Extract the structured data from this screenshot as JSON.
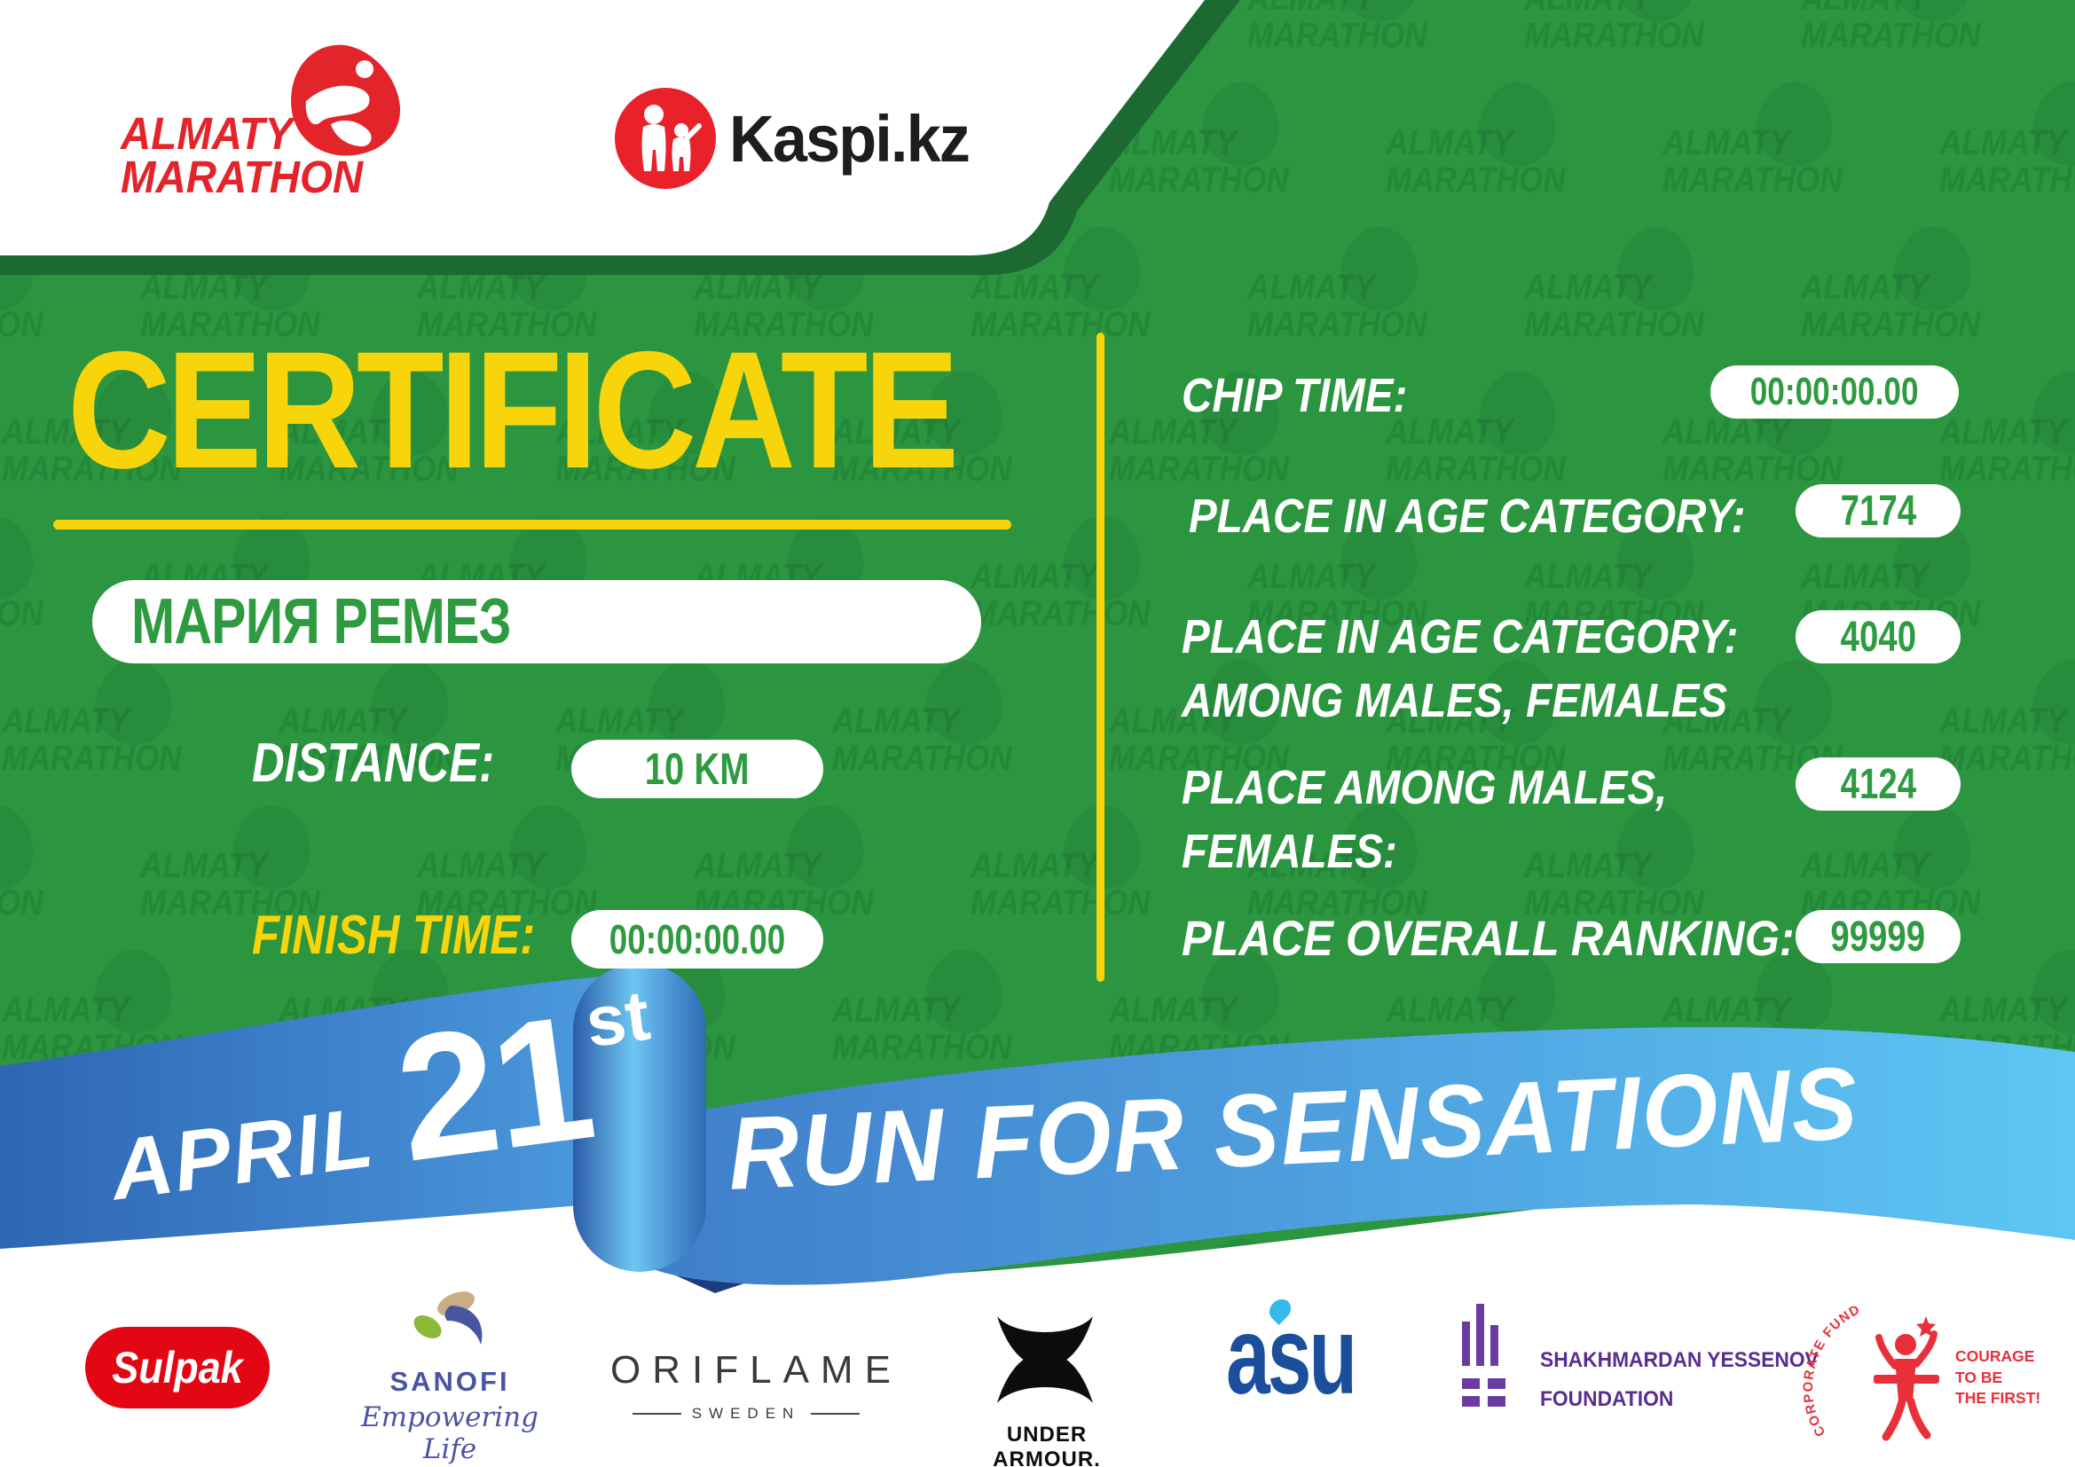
{
  "watermark": {
    "line1": "ALMATY",
    "line2": "MARATHON"
  },
  "header": {
    "almaty_line1": "ALMATY",
    "almaty_line2": "MARATHON",
    "kaspi_wordmark": "Kaspi.kz"
  },
  "title": "CERTIFICATE",
  "participant_name": "МАРИЯ РЕМЕЗ",
  "left_fields": {
    "distance_label": "DISTANCE:",
    "distance_value": "10 KM",
    "finish_label": "FINISH TIME:",
    "finish_value": "00:00:00.00"
  },
  "results": {
    "chip": {
      "label": "CHIP TIME:",
      "value": "00:00:00.00"
    },
    "age": {
      "label": "PLACE IN AGE CATEGORY:",
      "value": "7174"
    },
    "age_gender": {
      "label1": "PLACE IN AGE CATEGORY:",
      "label2": "AMONG MALES, FEMALES",
      "value": "4040"
    },
    "gender": {
      "label1": "PLACE AMONG MALES,",
      "label2": "FEMALES:",
      "value": "4124"
    },
    "overall": {
      "label": "PLACE OVERALL RANKING:",
      "value": "99999"
    }
  },
  "ribbon": {
    "month": "APRIL",
    "day": "21",
    "ordinal": "st",
    "slogan": "RUN FOR SENSATIONS"
  },
  "sponsors": {
    "sulpak": "Sulpak",
    "sanofi_name": "SANOFI",
    "sanofi_tagline": "Empowering Life",
    "oriflame_name": "ORIFLAME",
    "oriflame_country": "SWEDEN",
    "underarmour": "UNDER ARMOUR.",
    "asu": "asu",
    "yessenov_line1": "SHAKHMARDAN YESSENOV",
    "yessenov_line2": "FOUNDATION",
    "courage_arc": "CORPORATE FUND",
    "courage_line1": "COURAGE",
    "courage_line2": "TO BE",
    "courage_line3": "THE FIRST!"
  },
  "colors": {
    "background_green": "#2b953f",
    "dark_green_edge": "#1c6a32",
    "yellow": "#f8d50a",
    "brand_red": "#e3242b",
    "kaspi_red": "#e8212a",
    "ribbon_blue_left": "#3570bd",
    "ribbon_blue_right": "#55b9ee",
    "ribbon_fold_navy": "#1e3c7d",
    "value_green": "#2e9b40",
    "sanofi_blue": "#4a55a2",
    "asu_blue": "#1b4e9b",
    "yessenov_purple": "#5b2d8f",
    "courage_red": "#e8303a",
    "sulpak_red": "#e30613"
  }
}
